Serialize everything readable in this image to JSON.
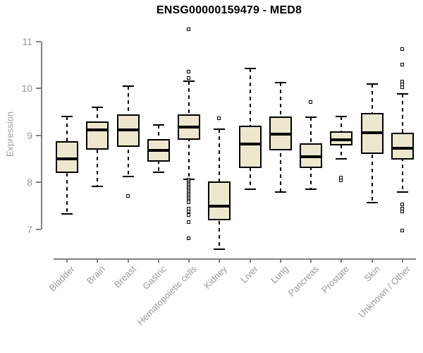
{
  "chart_data": {
    "type": "boxplot",
    "title": "ENSG00000159479 - MED8",
    "xlabel": "",
    "ylabel": "Expression",
    "ylim": [
      6.4,
      11.4
    ],
    "yticks": [
      7,
      8,
      9,
      10,
      11
    ],
    "grid": false,
    "legend": "none",
    "box_fill_color": "#ede7ce",
    "box_border_color": "#000000",
    "axis_color": "#808080",
    "tick_label_color": "#999999",
    "categories": [
      "Bladder",
      "Brain",
      "Breast",
      "Gastric",
      "Hematopoietic cells",
      "Kidney",
      "Liver",
      "Lung",
      "Pancreas",
      "Prostate",
      "Skin",
      "Unknown / Other"
    ],
    "boxes": [
      {
        "label": "Bladder",
        "whislo": 7.33,
        "q1": 8.2,
        "med": 8.5,
        "q3": 8.87,
        "whishi": 9.4,
        "outliers": []
      },
      {
        "label": "Brain",
        "whislo": 7.92,
        "q1": 8.7,
        "med": 9.12,
        "q3": 9.3,
        "whishi": 9.6,
        "outliers": []
      },
      {
        "label": "Breast",
        "whislo": 8.12,
        "q1": 8.75,
        "med": 9.12,
        "q3": 9.45,
        "whishi": 10.05,
        "outliers": [
          7.7
        ]
      },
      {
        "label": "Gastric",
        "whislo": 8.22,
        "q1": 8.44,
        "med": 8.68,
        "q3": 8.92,
        "whishi": 9.22,
        "outliers": []
      },
      {
        "label": "Hematopoietic cells",
        "whislo": 8.07,
        "q1": 8.9,
        "med": 9.18,
        "q3": 9.45,
        "whishi": 10.15,
        "outliers": [
          11.25,
          10.35,
          10.22,
          8.05,
          8.02,
          7.99,
          7.96,
          7.93,
          7.9,
          7.87,
          7.84,
          7.81,
          7.78,
          7.75,
          7.72,
          7.69,
          7.66,
          7.63,
          7.6,
          7.57,
          7.43,
          7.37,
          7.3,
          7.15,
          6.8
        ]
      },
      {
        "label": "Kidney",
        "whislo": 6.58,
        "q1": 7.2,
        "med": 7.5,
        "q3": 8.02,
        "whishi": 9.13,
        "outliers": [
          9.35
        ]
      },
      {
        "label": "Liver",
        "whislo": 7.85,
        "q1": 8.3,
        "med": 8.82,
        "q3": 9.2,
        "whishi": 10.42,
        "outliers": []
      },
      {
        "label": "Lung",
        "whislo": 7.8,
        "q1": 8.68,
        "med": 9.02,
        "q3": 9.4,
        "whishi": 10.12,
        "outliers": []
      },
      {
        "label": "Pancreas",
        "whislo": 7.85,
        "q1": 8.3,
        "med": 8.55,
        "q3": 8.83,
        "whishi": 9.38,
        "outliers": [
          9.7
        ]
      },
      {
        "label": "Prostate",
        "whislo": 8.5,
        "q1": 8.78,
        "med": 8.9,
        "q3": 9.08,
        "whishi": 9.4,
        "outliers": [
          8.1,
          8.03
        ]
      },
      {
        "label": "Skin",
        "whislo": 7.57,
        "q1": 8.6,
        "med": 9.05,
        "q3": 9.47,
        "whishi": 10.1,
        "outliers": []
      },
      {
        "label": "Unknown / Other",
        "whislo": 7.8,
        "q1": 8.48,
        "med": 8.72,
        "q3": 9.05,
        "whishi": 9.88,
        "outliers": [
          10.83,
          10.5,
          10.14,
          10.08,
          10.02,
          7.53,
          7.44,
          7.38,
          6.97
        ]
      }
    ]
  }
}
